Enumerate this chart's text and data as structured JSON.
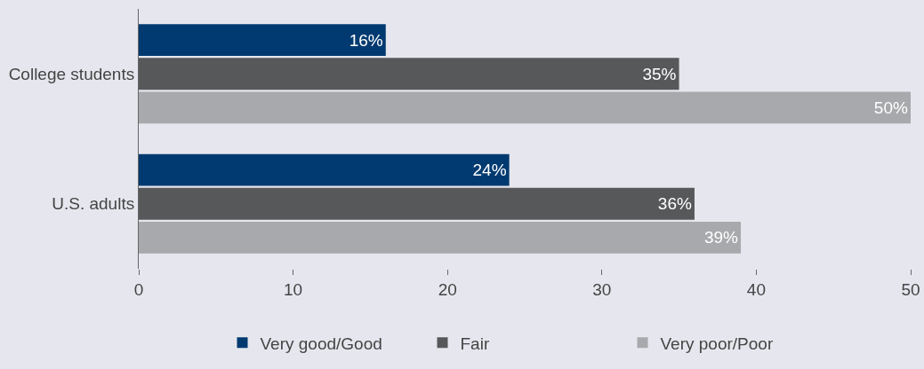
{
  "chart_data": {
    "type": "bar",
    "orientation": "horizontal",
    "categories": [
      "College students",
      "U.S. adults"
    ],
    "series": [
      {
        "name": "Very good/Good",
        "color": "#003a70",
        "values": [
          16,
          24
        ],
        "value_labels": [
          "16%",
          "24%"
        ]
      },
      {
        "name": "Fair",
        "color": "#56585a",
        "values": [
          35,
          36
        ],
        "value_labels": [
          "35%",
          "36%"
        ]
      },
      {
        "name": "Very poor/Poor",
        "color": "#a7a9ac",
        "values": [
          50,
          39
        ],
        "value_labels": [
          "50%",
          "39%"
        ]
      }
    ],
    "xlim": [
      0,
      50
    ],
    "xticks": [
      0,
      10,
      20,
      30,
      40,
      50
    ],
    "grid": false,
    "legend": "bottom"
  }
}
